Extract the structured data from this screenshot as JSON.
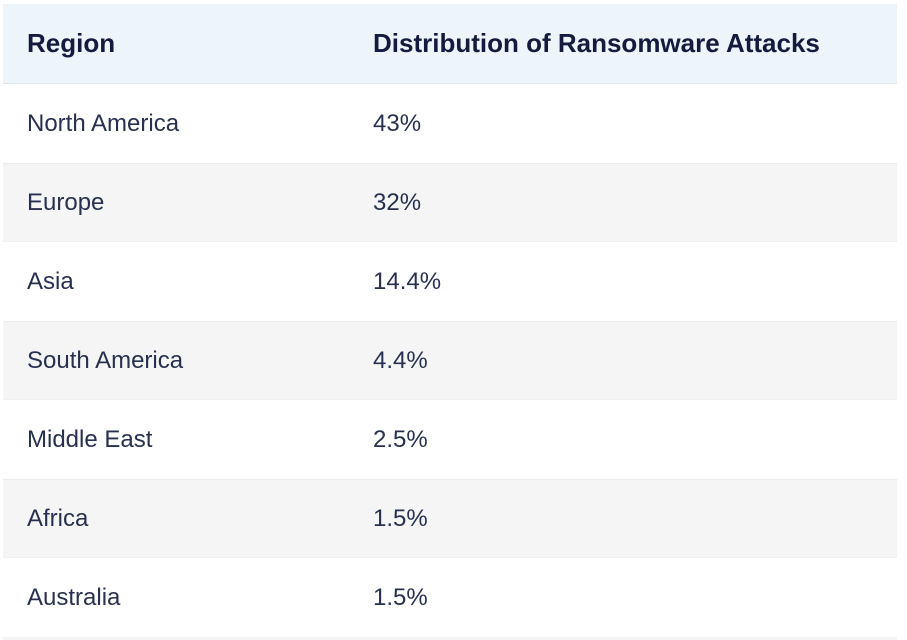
{
  "table": {
    "columns": [
      {
        "key": "region",
        "label": "Region"
      },
      {
        "key": "share",
        "label": "Distribution of Ransomware Attacks"
      }
    ],
    "rows": [
      {
        "region": "North America",
        "share": "43%"
      },
      {
        "region": "Europe",
        "share": "32%"
      },
      {
        "region": "Asia",
        "share": "14.4%"
      },
      {
        "region": "South America",
        "share": "4.4%"
      },
      {
        "region": "Middle East",
        "share": "2.5%"
      },
      {
        "region": "Africa",
        "share": "1.5%"
      },
      {
        "region": "Australia",
        "share": "1.5%"
      }
    ]
  },
  "theme": {
    "header_bg": "#edf4fa",
    "header_text": "#131c3e",
    "row_text": "#28304f",
    "row_bg": "#ffffff",
    "stripe_bg": "#f5f5f6",
    "border": "#dfe7ee"
  },
  "chart_data": {
    "type": "table",
    "title": "Distribution of Ransomware Attacks",
    "columns": [
      "Region",
      "Distribution of Ransomware Attacks"
    ],
    "categories": [
      "North America",
      "Europe",
      "Asia",
      "South America",
      "Middle East",
      "Africa",
      "Australia"
    ],
    "values": [
      43,
      32,
      14.4,
      4.4,
      2.5,
      1.5,
      1.5
    ],
    "unit": "%",
    "layout_hints": {
      "striped_rows": true,
      "header_background": "#edf4fa",
      "stripe_background": "#f5f5f6"
    }
  }
}
